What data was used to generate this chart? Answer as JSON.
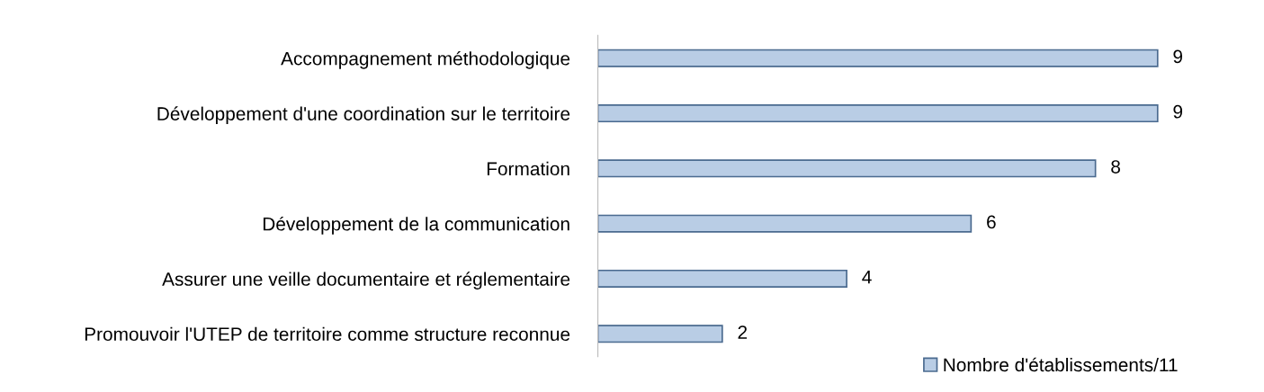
{
  "chart_data": {
    "type": "bar",
    "orientation": "horizontal",
    "categories": [
      "Accompagnement méthodologique",
      "Développement d'une coordination sur le territoire",
      "Formation",
      "Développement de la communication",
      "Assurer une veille documentaire et réglementaire",
      "Promouvoir l'UTEP de territoire comme structure reconnue"
    ],
    "series": [
      {
        "name": "Nombre d'établissements/11",
        "color": "#b9cde5",
        "values": [
          9,
          9,
          8,
          6,
          4,
          2
        ]
      }
    ],
    "data_labels": true,
    "legend": "bottom right",
    "grid": false
  }
}
